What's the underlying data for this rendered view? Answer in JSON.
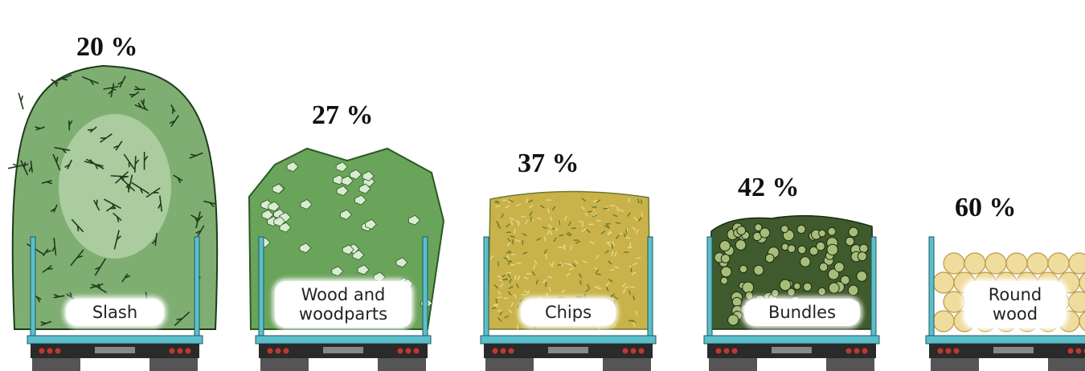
{
  "trucks": [
    {
      "percentage": "20 %",
      "label": "Slash",
      "load": "slash",
      "colors": {
        "fill": "#7fae72",
        "light": "#c8e0bd",
        "dark": "#1f3a1c"
      }
    },
    {
      "percentage": "27 %",
      "label": "Wood and\nwoodparts",
      "load": "wood-parts",
      "colors": {
        "fill": "#6aa45a",
        "light": "#d9ecd2",
        "dark": "#2a5a22"
      }
    },
    {
      "percentage": "37 %",
      "label": "Chips",
      "load": "chips",
      "colors": {
        "fill": "#c9b24a",
        "light": "#e8d98a",
        "dark": "#6b7a2a"
      }
    },
    {
      "percentage": "42 %",
      "label": "Bundles",
      "load": "bundles",
      "colors": {
        "fill": "#3f5a2c",
        "light": "#a9bd7a",
        "dark": "#1b2a12"
      }
    },
    {
      "percentage": "60 %",
      "label": "Round\nwood",
      "load": "round-wood",
      "colors": {
        "fill": "#f0dc9c",
        "light": "#fbf1cc",
        "dark": "#b89a4a"
      }
    }
  ],
  "truck_colors": {
    "frame": "#5bbfca",
    "chassis": "#2a2a2a",
    "lights": "#c0392b"
  }
}
